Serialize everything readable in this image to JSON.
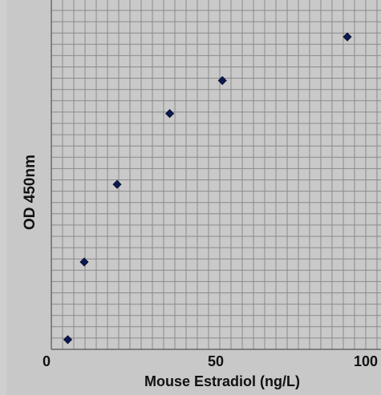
{
  "chart_data": {
    "type": "scatter",
    "xlabel": "Mouse Estradiol (ng/L)",
    "ylabel": "OD 450nm",
    "xlim": [
      0,
      100
    ],
    "x_ticks": [
      {
        "value": 0,
        "label": "0"
      },
      {
        "value": 50,
        "label": "50"
      },
      {
        "value": 100,
        "label": "100"
      }
    ],
    "grid": true,
    "marker_color": "#0d1a4f",
    "series": [
      {
        "points": [
          {
            "x": 5,
            "y": 0.1
          },
          {
            "x": 10,
            "y": 0.9
          },
          {
            "x": 20,
            "y": 1.7
          },
          {
            "x": 36,
            "y": 2.43
          },
          {
            "x": 52,
            "y": 2.77
          },
          {
            "x": 90,
            "y": 3.22
          }
        ]
      }
    ],
    "ylim": [
      0,
      3.6
    ]
  }
}
